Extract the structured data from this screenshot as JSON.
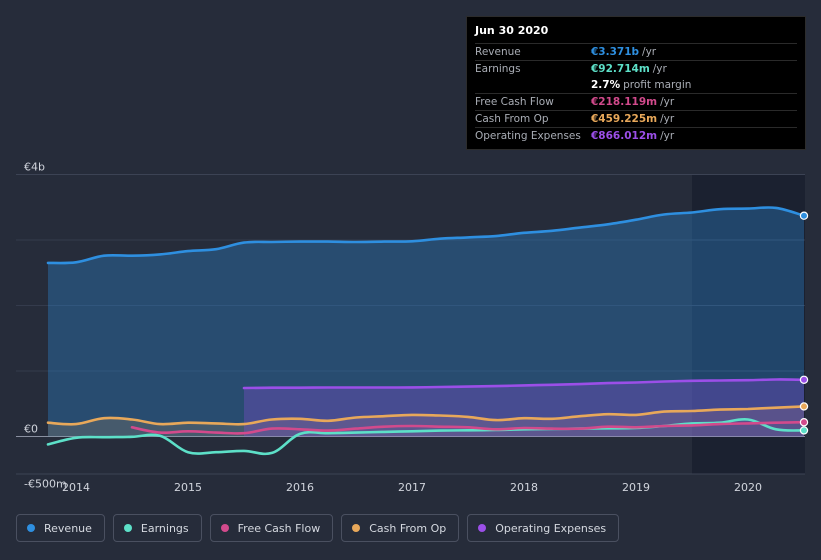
{
  "chart_data": {
    "type": "area",
    "title": "",
    "x_range": [
      2013.75,
      2020.5
    ],
    "ylim": [
      -500,
      4000
    ],
    "y_ticks": [
      {
        "value": 4000,
        "label": "€4b"
      },
      {
        "value": 0,
        "label": "€0"
      },
      {
        "value": -500,
        "label": "-€500m"
      }
    ],
    "x_ticks": [
      {
        "value": 2014,
        "label": "2014"
      },
      {
        "value": 2015,
        "label": "2015"
      },
      {
        "value": 2016,
        "label": "2016"
      },
      {
        "value": 2017,
        "label": "2017"
      },
      {
        "value": 2018,
        "label": "2018"
      },
      {
        "value": 2019,
        "label": "2019"
      },
      {
        "value": 2020,
        "label": "2020"
      }
    ],
    "gridlines": [
      3000,
      2000,
      1000
    ],
    "forecast_start": 2019.5,
    "series": [
      {
        "name": "Revenue",
        "color": "#2e8fe0",
        "fill": true,
        "points": [
          [
            2013.75,
            2650
          ],
          [
            2014.0,
            2660
          ],
          [
            2014.25,
            2760
          ],
          [
            2014.5,
            2760
          ],
          [
            2014.75,
            2780
          ],
          [
            2015.0,
            2830
          ],
          [
            2015.25,
            2860
          ],
          [
            2015.5,
            2960
          ],
          [
            2015.75,
            2970
          ],
          [
            2016.0,
            2975
          ],
          [
            2016.25,
            2975
          ],
          [
            2016.5,
            2970
          ],
          [
            2016.75,
            2975
          ],
          [
            2017.0,
            2980
          ],
          [
            2017.25,
            3020
          ],
          [
            2017.5,
            3040
          ],
          [
            2017.75,
            3060
          ],
          [
            2018.0,
            3110
          ],
          [
            2018.25,
            3140
          ],
          [
            2018.5,
            3190
          ],
          [
            2018.75,
            3240
          ],
          [
            2019.0,
            3310
          ],
          [
            2019.25,
            3390
          ],
          [
            2019.5,
            3420
          ],
          [
            2019.75,
            3470
          ],
          [
            2020.0,
            3480
          ],
          [
            2020.25,
            3490
          ],
          [
            2020.5,
            3371
          ]
        ]
      },
      {
        "name": "Earnings",
        "color": "#5de0c8",
        "fill": false,
        "points": [
          [
            2013.75,
            -120
          ],
          [
            2014.0,
            -20
          ],
          [
            2014.25,
            -10
          ],
          [
            2014.5,
            -5
          ],
          [
            2014.75,
            10
          ],
          [
            2015.0,
            -240
          ],
          [
            2015.25,
            -240
          ],
          [
            2015.5,
            -220
          ],
          [
            2015.75,
            -250
          ],
          [
            2016.0,
            40
          ],
          [
            2016.25,
            50
          ],
          [
            2016.5,
            60
          ],
          [
            2016.75,
            70
          ],
          [
            2017.0,
            80
          ],
          [
            2017.25,
            90
          ],
          [
            2017.5,
            95
          ],
          [
            2017.75,
            100
          ],
          [
            2018.0,
            110
          ],
          [
            2018.25,
            115
          ],
          [
            2018.5,
            120
          ],
          [
            2018.75,
            125
          ],
          [
            2019.0,
            130
          ],
          [
            2019.25,
            160
          ],
          [
            2019.5,
            200
          ],
          [
            2019.75,
            210
          ],
          [
            2020.0,
            260
          ],
          [
            2020.25,
            110
          ],
          [
            2020.5,
            93
          ]
        ]
      },
      {
        "name": "Free Cash Flow",
        "color": "#d24a8c",
        "fill": false,
        "points": [
          [
            2014.5,
            140
          ],
          [
            2014.75,
            60
          ],
          [
            2015.0,
            80
          ],
          [
            2015.25,
            60
          ],
          [
            2015.5,
            50
          ],
          [
            2015.75,
            120
          ],
          [
            2016.0,
            110
          ],
          [
            2016.25,
            90
          ],
          [
            2016.5,
            120
          ],
          [
            2016.75,
            150
          ],
          [
            2017.0,
            160
          ],
          [
            2017.25,
            150
          ],
          [
            2017.5,
            140
          ],
          [
            2017.75,
            110
          ],
          [
            2018.0,
            130
          ],
          [
            2018.25,
            120
          ],
          [
            2018.5,
            120
          ],
          [
            2018.75,
            150
          ],
          [
            2019.0,
            140
          ],
          [
            2019.25,
            160
          ],
          [
            2019.5,
            170
          ],
          [
            2019.75,
            190
          ],
          [
            2020.0,
            200
          ],
          [
            2020.25,
            210
          ],
          [
            2020.5,
            218
          ]
        ]
      },
      {
        "name": "Cash From Op",
        "color": "#e8a85a",
        "fill": true,
        "points": [
          [
            2013.75,
            210
          ],
          [
            2014.0,
            190
          ],
          [
            2014.25,
            280
          ],
          [
            2014.5,
            260
          ],
          [
            2014.75,
            190
          ],
          [
            2015.0,
            210
          ],
          [
            2015.25,
            200
          ],
          [
            2015.5,
            190
          ],
          [
            2015.75,
            260
          ],
          [
            2016.0,
            270
          ],
          [
            2016.25,
            240
          ],
          [
            2016.5,
            290
          ],
          [
            2016.75,
            310
          ],
          [
            2017.0,
            330
          ],
          [
            2017.25,
            320
          ],
          [
            2017.5,
            300
          ],
          [
            2017.75,
            250
          ],
          [
            2018.0,
            280
          ],
          [
            2018.25,
            270
          ],
          [
            2018.5,
            310
          ],
          [
            2018.75,
            340
          ],
          [
            2019.0,
            330
          ],
          [
            2019.25,
            380
          ],
          [
            2019.5,
            390
          ],
          [
            2019.75,
            410
          ],
          [
            2020.0,
            420
          ],
          [
            2020.25,
            440
          ],
          [
            2020.5,
            459
          ]
        ]
      },
      {
        "name": "Operating Expenses",
        "color": "#9b4fe8",
        "fill": true,
        "points": [
          [
            2015.5,
            740
          ],
          [
            2015.75,
            745
          ],
          [
            2016.0,
            745
          ],
          [
            2016.25,
            748
          ],
          [
            2016.5,
            748
          ],
          [
            2016.75,
            748
          ],
          [
            2017.0,
            750
          ],
          [
            2017.25,
            755
          ],
          [
            2017.5,
            762
          ],
          [
            2017.75,
            770
          ],
          [
            2018.0,
            780
          ],
          [
            2018.25,
            790
          ],
          [
            2018.5,
            800
          ],
          [
            2018.75,
            815
          ],
          [
            2019.0,
            825
          ],
          [
            2019.25,
            840
          ],
          [
            2019.5,
            850
          ],
          [
            2019.75,
            855
          ],
          [
            2020.0,
            860
          ],
          [
            2020.25,
            870
          ],
          [
            2020.5,
            866
          ]
        ]
      }
    ]
  },
  "tooltip": {
    "date": "Jun 30 2020",
    "rows": [
      {
        "label": "Revenue",
        "value": "€3.371b",
        "unit": "/yr",
        "color": "#2e8fe0"
      },
      {
        "label": "Earnings",
        "value": "€92.714m",
        "unit": "/yr",
        "color": "#5de0c8"
      },
      {
        "label": "",
        "value": "2.7%",
        "unit": "profit margin",
        "color": "#ffffff"
      },
      {
        "label": "Free Cash Flow",
        "value": "€218.119m",
        "unit": "/yr",
        "color": "#d24a8c"
      },
      {
        "label": "Cash From Op",
        "value": "€459.225m",
        "unit": "/yr",
        "color": "#e8a85a"
      },
      {
        "label": "Operating Expenses",
        "value": "€866.012m",
        "unit": "/yr",
        "color": "#9b4fe8"
      }
    ]
  },
  "legend": [
    {
      "label": "Revenue",
      "color": "#2e8fe0"
    },
    {
      "label": "Earnings",
      "color": "#5de0c8"
    },
    {
      "label": "Free Cash Flow",
      "color": "#d24a8c"
    },
    {
      "label": "Cash From Op",
      "color": "#e8a85a"
    },
    {
      "label": "Operating Expenses",
      "color": "#9b4fe8"
    }
  ]
}
